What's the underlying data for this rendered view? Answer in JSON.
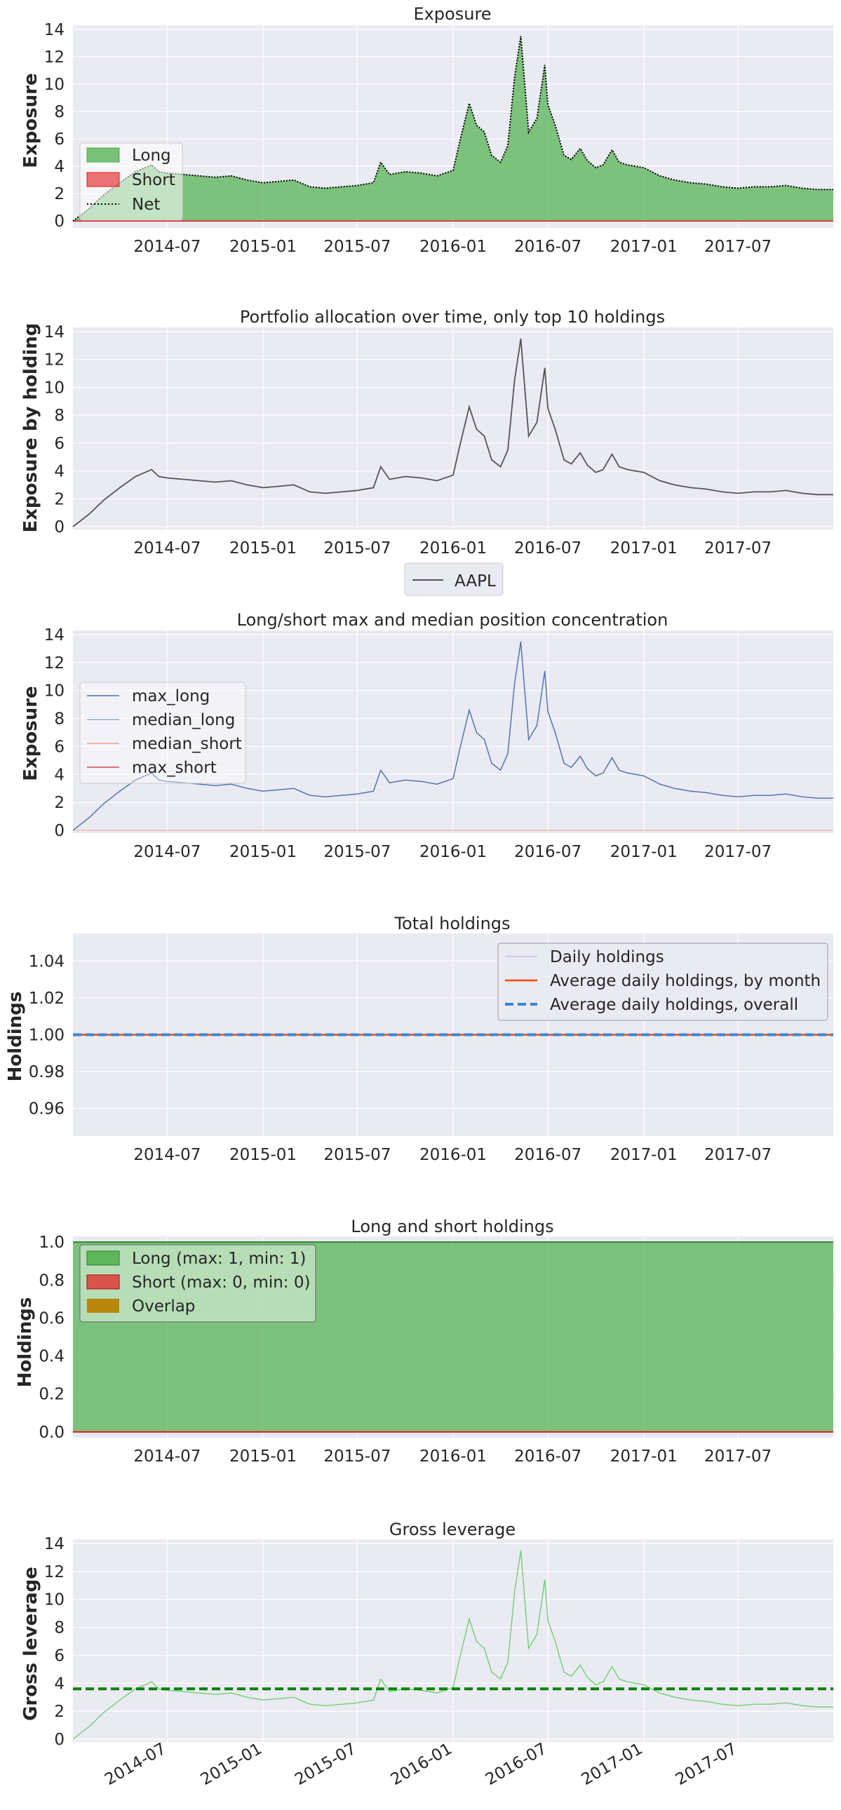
{
  "colors": {
    "panel_bg": "#eaeaf2",
    "grid": "#ffffff",
    "long": "#4daf4a",
    "short": "#e41a1c",
    "overlap": "#b8860b",
    "net": "#000000",
    "aapl": "#555555",
    "max_long": "#4c72b0",
    "median_long": "#8fa8d6",
    "median_short": "#f2a08c",
    "max_short": "#c44e52",
    "daily_holdings": "#c7c2e6",
    "avg_month": "#ff4500",
    "avg_overall": "#3a86d4",
    "gross": "#6fd16f",
    "gross_mean": "#008000"
  },
  "chart_data": [
    {
      "id": "exposure",
      "type": "area",
      "title": "Exposure",
      "ylabel": "Exposure",
      "xlabel": "",
      "xlim": [
        "2014-01-01",
        "2017-12-31"
      ],
      "ylim": [
        -0.5,
        14.3
      ],
      "yticks": [
        "0",
        "2",
        "4",
        "6",
        "8",
        "10",
        "12",
        "14"
      ],
      "xticks": [
        "2014-07",
        "2015-01",
        "2015-07",
        "2016-01",
        "2016-07",
        "2017-01",
        "2017-07"
      ],
      "legend": {
        "placement": "left",
        "entries": [
          "Long",
          "Short",
          "Net"
        ]
      },
      "series": [
        {
          "name": "Long",
          "fill": true,
          "values_ref": "exposure_series"
        },
        {
          "name": "Short",
          "values_ref": "zero"
        },
        {
          "name": "Net",
          "style": "dotted",
          "values_ref": "exposure_series"
        }
      ]
    },
    {
      "id": "top10",
      "type": "line",
      "title": "Portfolio allocation over time, only top 10 holdings",
      "ylabel": "Exposure by holding",
      "xlabel": "",
      "xlim": [
        "2014-01-01",
        "2017-12-31"
      ],
      "ylim": [
        -0.2,
        14.3
      ],
      "yticks": [
        "0",
        "2",
        "4",
        "6",
        "8",
        "10",
        "12",
        "14"
      ],
      "xticks": [
        "2014-07",
        "2015-01",
        "2015-07",
        "2016-01",
        "2016-07",
        "2017-01",
        "2017-07"
      ],
      "legend": {
        "placement": "bottom-center",
        "entries": [
          "AAPL"
        ]
      },
      "series": [
        {
          "name": "AAPL",
          "values_ref": "exposure_series"
        }
      ]
    },
    {
      "id": "concentration",
      "type": "line",
      "title": "Long/short max and median position concentration",
      "ylabel": "Exposure",
      "xlabel": "",
      "xlim": [
        "2014-01-01",
        "2017-12-31"
      ],
      "ylim": [
        -0.2,
        14.3
      ],
      "yticks": [
        "0",
        "2",
        "4",
        "6",
        "8",
        "10",
        "12",
        "14"
      ],
      "xticks": [
        "2014-07",
        "2015-01",
        "2015-07",
        "2016-01",
        "2016-07",
        "2017-01",
        "2017-07"
      ],
      "legend": {
        "placement": "left",
        "entries": [
          "max_long",
          "median_long",
          "median_short",
          "max_short"
        ]
      },
      "series": [
        {
          "name": "max_long",
          "values_ref": "exposure_series"
        },
        {
          "name": "median_long",
          "values_ref": "exposure_series"
        },
        {
          "name": "median_short",
          "values_ref": "zero"
        },
        {
          "name": "max_short",
          "values_ref": "zero"
        }
      ]
    },
    {
      "id": "total_holdings",
      "type": "line",
      "title": "Total holdings",
      "ylabel": "Holdings",
      "xlabel": "",
      "xlim": [
        "2014-01-01",
        "2017-12-31"
      ],
      "ylim": [
        0.945,
        1.055
      ],
      "yticks": [
        "0.96",
        "0.98",
        "1.00",
        "1.02",
        "1.04"
      ],
      "xticks": [
        "2014-07",
        "2015-01",
        "2015-07",
        "2016-01",
        "2016-07",
        "2017-01",
        "2017-07"
      ],
      "legend": {
        "placement": "top-right",
        "entries": [
          "Daily holdings",
          "Average daily holdings, by month",
          "Average daily holdings, overall"
        ]
      },
      "series": [
        {
          "name": "Daily holdings",
          "constant": 1.0
        },
        {
          "name": "Average daily holdings, by month",
          "constant": 1.0
        },
        {
          "name": "Average daily holdings, overall",
          "constant": 1.0,
          "style": "dashed"
        }
      ]
    },
    {
      "id": "long_short_holdings",
      "type": "area",
      "title": "Long and short holdings",
      "ylabel": "Holdings",
      "xlabel": "",
      "xlim": [
        "2014-01-01",
        "2017-12-31"
      ],
      "ylim": [
        -0.03,
        1.03
      ],
      "yticks": [
        "0.0",
        "0.2",
        "0.4",
        "0.6",
        "0.8",
        "1.0"
      ],
      "xticks": [
        "2014-07",
        "2015-01",
        "2015-07",
        "2016-01",
        "2016-07",
        "2017-01",
        "2017-07"
      ],
      "legend": {
        "placement": "top-left",
        "entries": [
          "Long (max: 1, min: 1)",
          "Short (max: 0, min: 0)",
          "Overlap"
        ]
      },
      "series": [
        {
          "name": "Long (max: 1, min: 1)",
          "constant": 1
        },
        {
          "name": "Short (max: 0, min: 0)",
          "constant": 0
        },
        {
          "name": "Overlap",
          "constant": 0
        }
      ]
    },
    {
      "id": "gross_leverage",
      "type": "line",
      "title": "Gross leverage",
      "ylabel": "Gross leverage",
      "xlabel": "",
      "xlim": [
        "2014-01-01",
        "2017-12-31"
      ],
      "ylim": [
        -0.2,
        14.3
      ],
      "yticks": [
        "0",
        "2",
        "4",
        "6",
        "8",
        "10",
        "12",
        "14"
      ],
      "xticks": [
        "2014-07",
        "2015-01",
        "2015-07",
        "2016-01",
        "2016-07",
        "2017-01",
        "2017-07"
      ],
      "xticks_rotated": true,
      "legend": null,
      "mean": 3.6,
      "series": [
        {
          "name": "",
          "values_ref": "exposure_series"
        }
      ]
    }
  ],
  "exposure_series": {
    "dates": [
      "2014-01-01",
      "2014-02-01",
      "2014-03-01",
      "2014-04-01",
      "2014-05-01",
      "2014-06-01",
      "2014-06-15",
      "2014-07-01",
      "2014-08-01",
      "2014-09-01",
      "2014-10-01",
      "2014-11-01",
      "2014-12-01",
      "2015-01-01",
      "2015-02-01",
      "2015-03-01",
      "2015-04-01",
      "2015-05-01",
      "2015-06-01",
      "2015-07-01",
      "2015-08-01",
      "2015-08-15",
      "2015-09-01",
      "2015-10-01",
      "2015-11-01",
      "2015-12-01",
      "2016-01-01",
      "2016-01-15",
      "2016-02-01",
      "2016-02-15",
      "2016-03-01",
      "2016-03-15",
      "2016-04-01",
      "2016-04-15",
      "2016-04-28",
      "2016-05-10",
      "2016-05-25",
      "2016-06-10",
      "2016-06-25",
      "2016-07-01",
      "2016-07-15",
      "2016-08-01",
      "2016-08-15",
      "2016-09-01",
      "2016-09-15",
      "2016-10-01",
      "2016-10-15",
      "2016-11-01",
      "2016-11-15",
      "2016-12-01",
      "2017-01-01",
      "2017-02-01",
      "2017-03-01",
      "2017-04-01",
      "2017-05-01",
      "2017-06-01",
      "2017-07-01",
      "2017-08-01",
      "2017-09-01",
      "2017-10-01",
      "2017-11-01",
      "2017-12-01",
      "2017-12-31"
    ],
    "values": [
      0.0,
      0.9,
      1.9,
      2.8,
      3.6,
      4.1,
      3.6,
      3.5,
      3.4,
      3.3,
      3.2,
      3.3,
      3.0,
      2.8,
      2.9,
      3.0,
      2.5,
      2.4,
      2.5,
      2.6,
      2.8,
      4.3,
      3.4,
      3.6,
      3.5,
      3.3,
      3.7,
      6.0,
      8.6,
      7.0,
      6.5,
      4.8,
      4.3,
      5.5,
      10.5,
      13.5,
      6.5,
      7.5,
      11.4,
      8.5,
      7.0,
      4.8,
      4.5,
      5.3,
      4.4,
      3.9,
      4.1,
      5.2,
      4.3,
      4.1,
      3.9,
      3.3,
      3.0,
      2.8,
      2.7,
      2.5,
      2.4,
      2.5,
      2.5,
      2.6,
      2.4,
      2.3,
      2.3
    ]
  }
}
